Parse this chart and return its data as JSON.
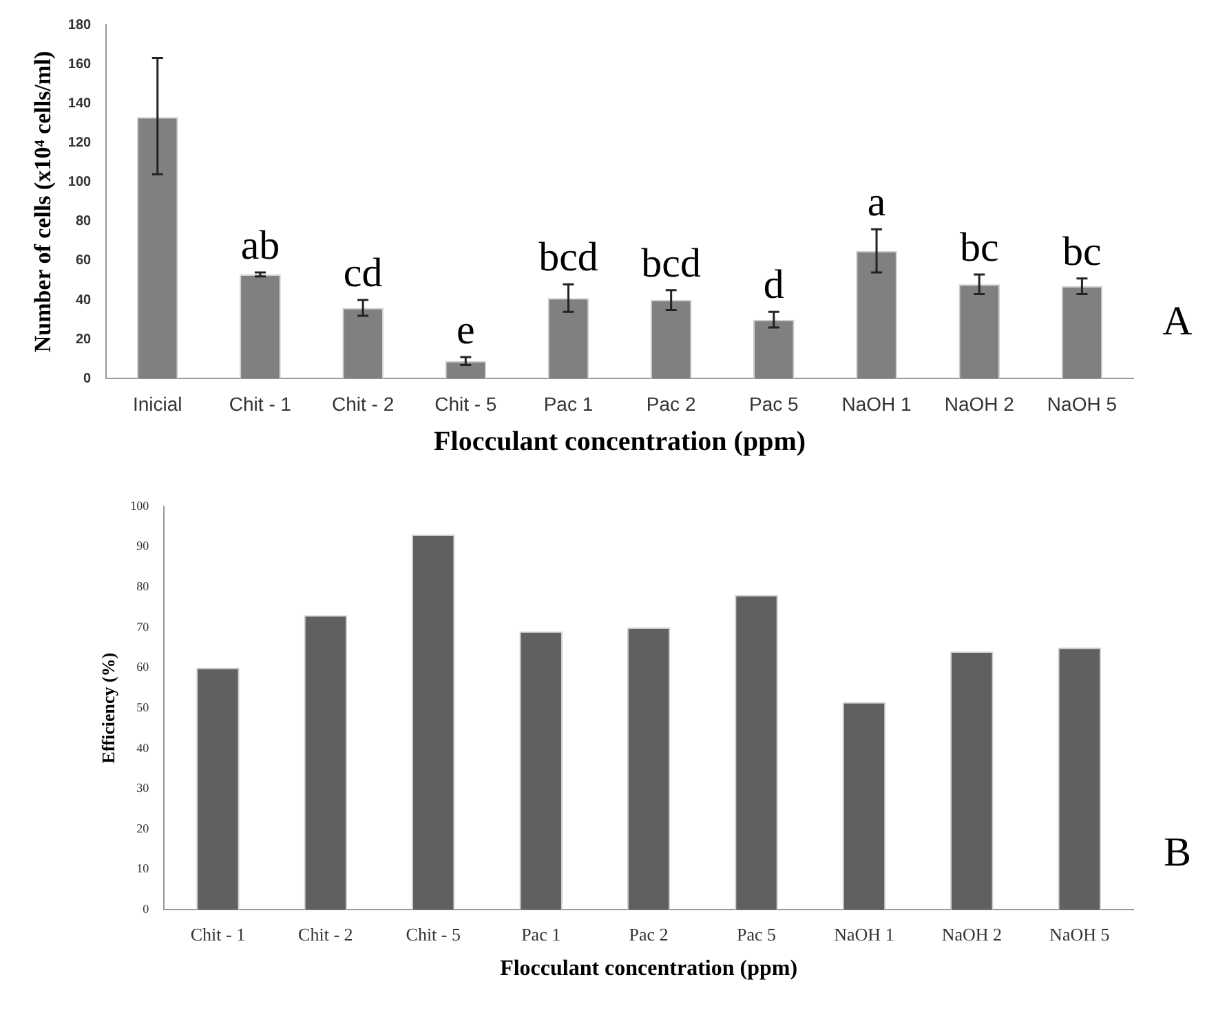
{
  "chart_data": [
    {
      "type": "bar",
      "xlabel": "Flocculant concentration (ppm)",
      "ylabel": "Number of cells (x10⁴ cells/ml)",
      "categories": [
        "Inicial",
        "Chit - 1",
        "Chit - 2",
        "Chit - 5",
        "Pac 1",
        "Pac 2",
        "Pac 5",
        "NaOH 1",
        "NaOH 2",
        "NaOH 5"
      ],
      "values": [
        133,
        53,
        36,
        9,
        41,
        40,
        30,
        65,
        48,
        47
      ],
      "errors": [
        [
          104,
          163
        ],
        1,
        4,
        2,
        7,
        5,
        4,
        11,
        5,
        4
      ],
      "color": "#808080",
      "ylim": [
        0,
        180
      ],
      "yticks": [
        0,
        20,
        40,
        60,
        80,
        100,
        120,
        140,
        160,
        180
      ],
      "grid": false,
      "legend": false,
      "annotations": [
        "A",
        {
          "text": "ab",
          "x": "Chit - 1",
          "y": 53
        },
        {
          "text": "cd",
          "x": "Chit - 2",
          "y": 36
        },
        {
          "text": "e",
          "x": "Chit - 5",
          "y": 9
        },
        {
          "text": "bcd",
          "x": "Pac 1",
          "y": 41
        },
        {
          "text": "bcd",
          "x": "Pac 2",
          "y": 40
        },
        {
          "text": "d",
          "x": "Pac 5",
          "y": 30
        },
        {
          "text": "a",
          "x": "NaOH 1",
          "y": 65
        },
        {
          "text": "bc",
          "x": "NaOH 2",
          "y": 48
        },
        {
          "text": "bc",
          "x": "NaOH 5",
          "y": 47
        }
      ]
    },
    {
      "type": "bar",
      "xlabel": "Flocculant concentration (ppm)",
      "ylabel": "Efficiency (%)",
      "categories": [
        "Chit - 1",
        "Chit - 2",
        "Chit - 5",
        "Pac 1",
        "Pac 2",
        "Pac 5",
        "NaOH 1",
        "NaOH 2",
        "NaOH 5"
      ],
      "values": [
        60,
        73,
        93,
        69,
        70,
        78,
        51.5,
        64,
        65
      ],
      "color": "#606060",
      "ylim": [
        0,
        100
      ],
      "yticks": [
        0,
        10,
        20,
        30,
        40,
        50,
        60,
        70,
        80,
        90,
        100
      ],
      "grid": false,
      "legend": false,
      "annotations": [
        "B"
      ]
    }
  ]
}
